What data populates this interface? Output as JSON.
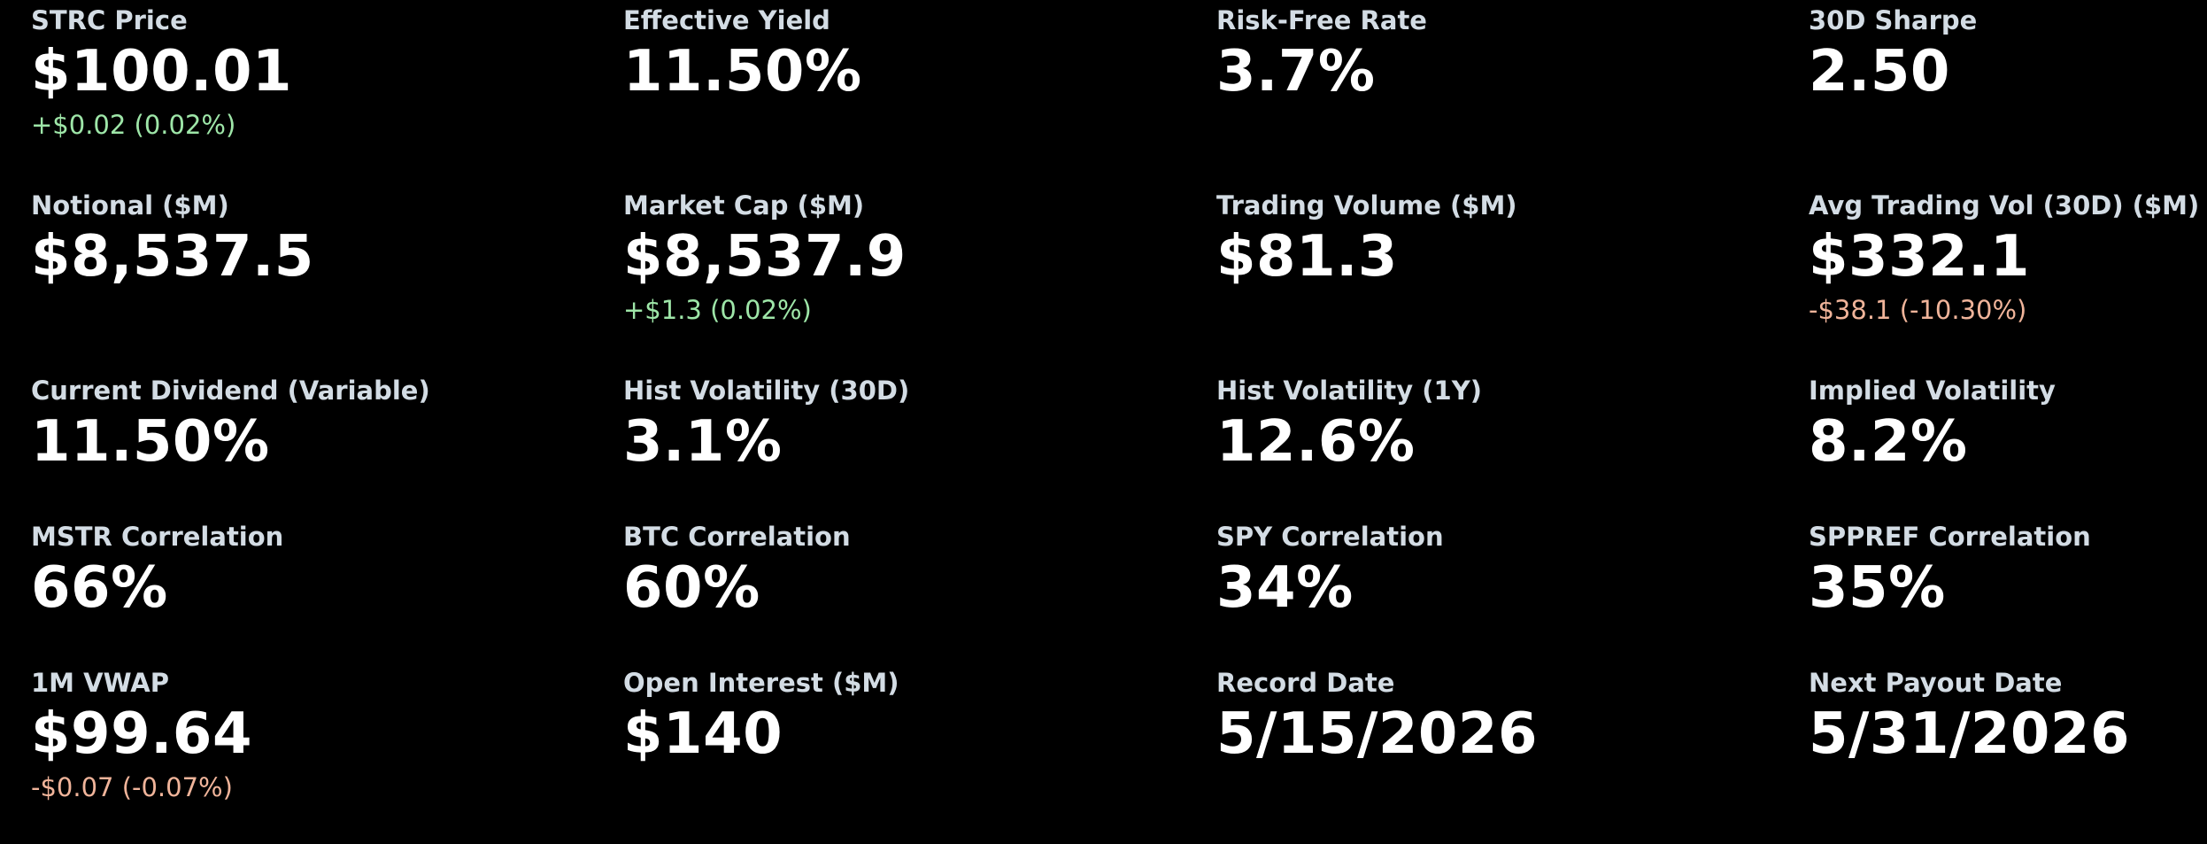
{
  "colors": {
    "background": "#000000",
    "label": "#d3dce4",
    "value": "#ffffff",
    "positive_change": "#9ee6a8",
    "negative_change": "#f0b49a"
  },
  "metrics": [
    {
      "label": "STRC Price",
      "value": "$100.01",
      "change": "+$0.02 (0.02%)",
      "change_direction": "positive"
    },
    {
      "label": "Effective Yield",
      "value": "11.50%",
      "change": ""
    },
    {
      "label": "Risk-Free Rate",
      "value": "3.7%",
      "change": ""
    },
    {
      "label": "30D Sharpe",
      "value": "2.50",
      "change": ""
    },
    {
      "label": "Notional ($M)",
      "value": "$8,537.5",
      "change": ""
    },
    {
      "label": "Market Cap ($M)",
      "value": "$8,537.9",
      "change": "+$1.3 (0.02%)",
      "change_direction": "positive"
    },
    {
      "label": "Trading Volume ($M)",
      "value": "$81.3",
      "change": ""
    },
    {
      "label": "Avg Trading Vol (30D) ($M)",
      "value": "$332.1",
      "change": "-$38.1 (-10.30%)",
      "change_direction": "negative"
    },
    {
      "label": "Current Dividend (Variable)",
      "value": "11.50%",
      "change": ""
    },
    {
      "label": "Hist Volatility (30D)",
      "value": "3.1%",
      "change": ""
    },
    {
      "label": "Hist Volatility (1Y)",
      "value": "12.6%",
      "change": ""
    },
    {
      "label": "Implied Volatility",
      "value": "8.2%",
      "change": ""
    },
    {
      "label": "MSTR Correlation",
      "value": "66%",
      "change": ""
    },
    {
      "label": "BTC Correlation",
      "value": "60%",
      "change": ""
    },
    {
      "label": "SPY Correlation",
      "value": "34%",
      "change": ""
    },
    {
      "label": "SPPREF Correlation",
      "value": "35%",
      "change": ""
    },
    {
      "label": "1M VWAP",
      "value": "$99.64",
      "change": "-$0.07 (-0.07%)",
      "change_direction": "negative"
    },
    {
      "label": "Open Interest ($M)",
      "value": "$140",
      "change": ""
    },
    {
      "label": "Record Date",
      "value": "5/15/2026",
      "change": ""
    },
    {
      "label": "Next Payout Date",
      "value": "5/31/2026",
      "change": ""
    }
  ]
}
